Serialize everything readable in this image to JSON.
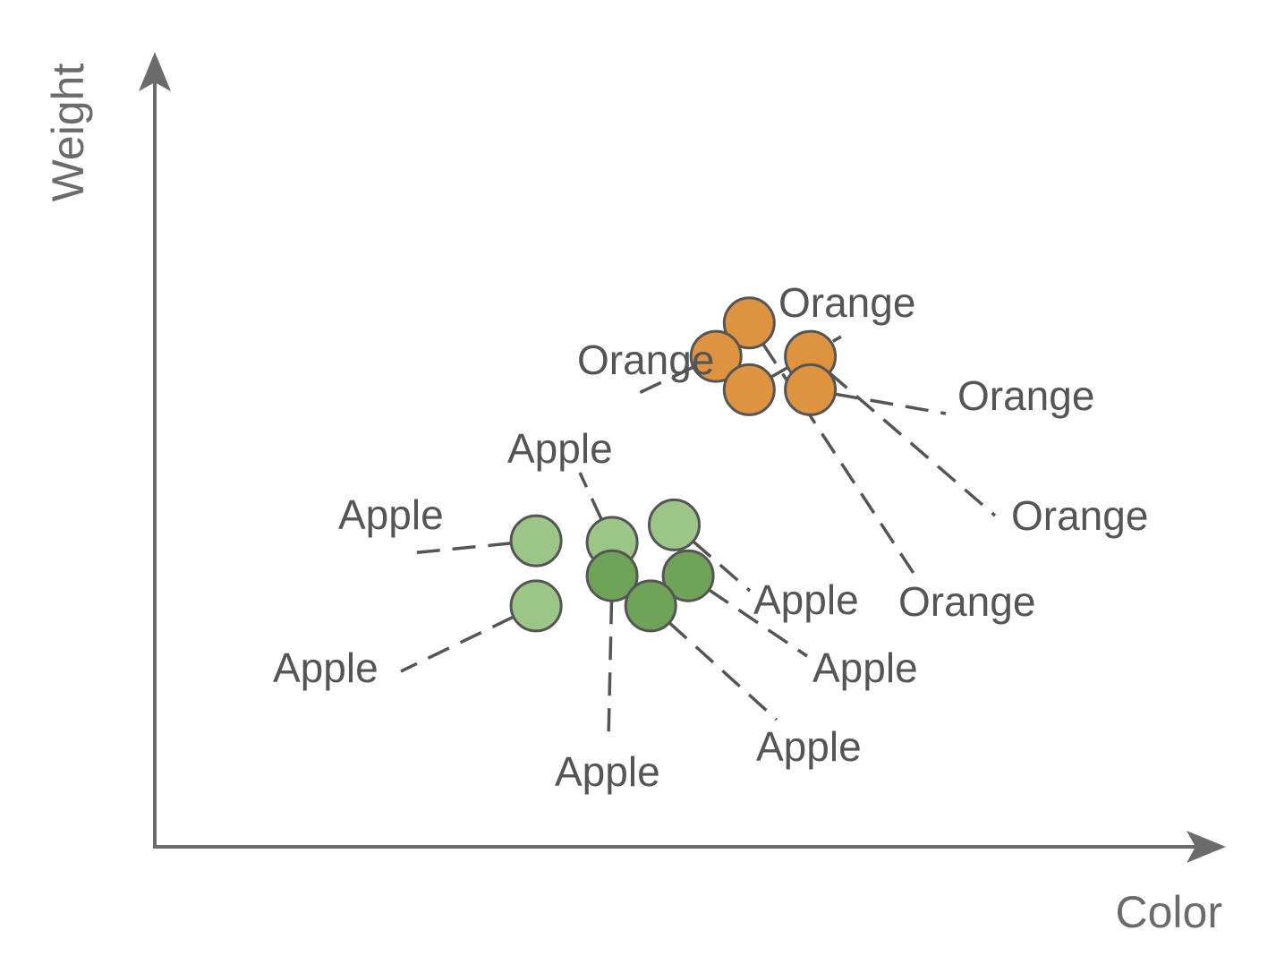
{
  "chart_data": {
    "type": "scatter",
    "title": "",
    "xlabel": "Color",
    "ylabel": "Weight",
    "grid": false,
    "colors": {
      "axis": "#6b6b6b",
      "text": "#555555",
      "orange": "#de9340",
      "apple_light": "#9bc688",
      "apple_dark": "#6ea358"
    },
    "points": [
      {
        "label": "Orange",
        "x": 0.555,
        "y": 0.659,
        "color": "#de9340"
      },
      {
        "label": "Orange",
        "x": 0.612,
        "y": 0.617,
        "color": "#de9340"
      },
      {
        "label": "Orange",
        "x": 0.524,
        "y": 0.617,
        "color": "#de9340"
      },
      {
        "label": "Orange",
        "x": 0.612,
        "y": 0.575,
        "color": "#de9340"
      },
      {
        "label": "Orange",
        "x": 0.555,
        "y": 0.575,
        "color": "#de9340"
      },
      {
        "label": "Apple",
        "x": 0.356,
        "y": 0.385,
        "color": "#9bc688"
      },
      {
        "label": "Apple",
        "x": 0.485,
        "y": 0.405,
        "color": "#9bc688"
      },
      {
        "label": "Apple",
        "x": 0.427,
        "y": 0.383,
        "color": "#9bc688"
      },
      {
        "label": "Apple",
        "x": 0.356,
        "y": 0.303,
        "color": "#9bc688"
      },
      {
        "label": "Apple",
        "x": 0.427,
        "y": 0.341,
        "color": "#6ea358"
      },
      {
        "label": "Apple",
        "x": 0.498,
        "y": 0.341,
        "color": "#6ea358"
      },
      {
        "label": "Apple",
        "x": 0.463,
        "y": 0.303,
        "color": "#6ea358"
      }
    ]
  }
}
